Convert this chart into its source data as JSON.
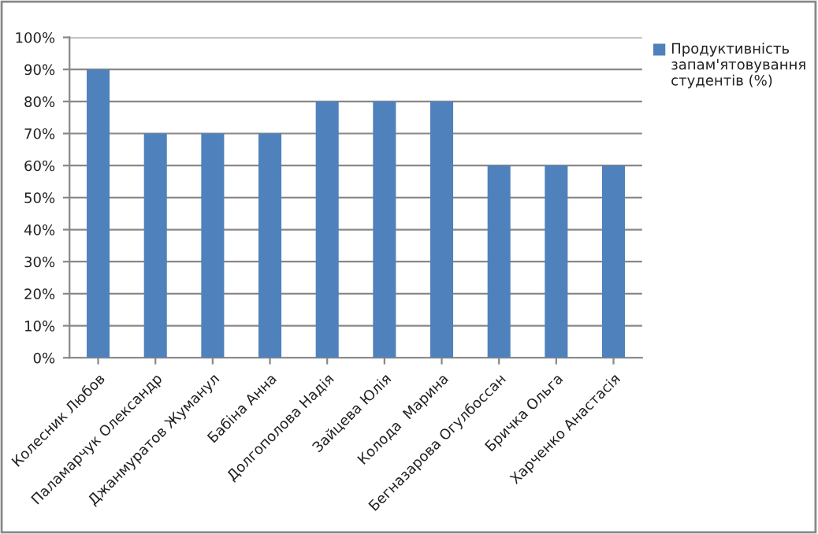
{
  "chart_data": {
    "type": "bar",
    "categories": [
      "Колесник Любов",
      "Паламарчук Олександр",
      "Джанмуратов Жуманул",
      "Бабіна Анна",
      "Долгополова Надія",
      "Зайцева Юлія",
      "Колода  Марина",
      "Бегназарова Огулбоссан",
      "Бричка Ольга",
      "Харченко Анастасія"
    ],
    "series": [
      {
        "name": "Продуктивність запам'ятовування студентів (%)",
        "color": "#4f81bd",
        "values": [
          90,
          70,
          70,
          70,
          80,
          80,
          80,
          60,
          60,
          60
        ]
      }
    ],
    "ylim": [
      0,
      100
    ],
    "yticks": [
      {
        "value": 0,
        "label": "0%"
      },
      {
        "value": 10,
        "label": "10%"
      },
      {
        "value": 20,
        "label": "20%"
      },
      {
        "value": 30,
        "label": "30%"
      },
      {
        "value": 40,
        "label": "40%"
      },
      {
        "value": 50,
        "label": "50%"
      },
      {
        "value": 60,
        "label": "60%"
      },
      {
        "value": 70,
        "label": "70%"
      },
      {
        "value": 80,
        "label": "80%"
      },
      {
        "value": 90,
        "label": "90%"
      },
      {
        "value": 100,
        "label": "100%"
      }
    ],
    "grid": "y",
    "legend": "right"
  }
}
